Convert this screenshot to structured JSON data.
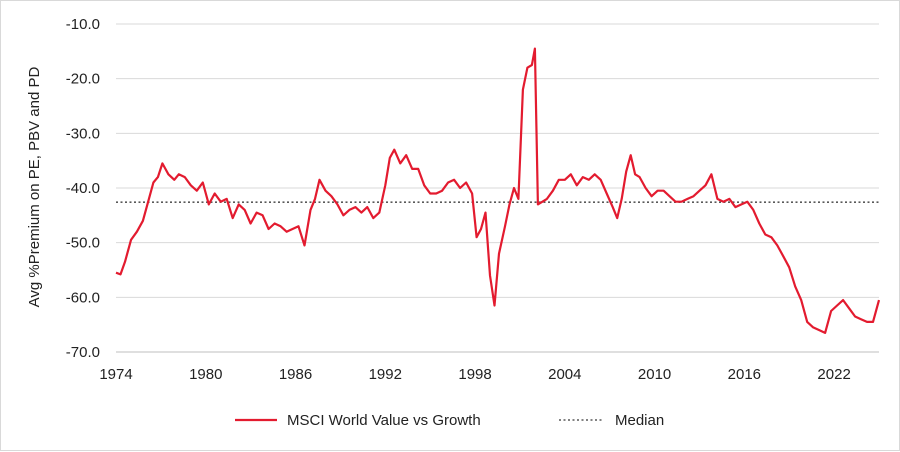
{
  "chart_data": {
    "type": "line",
    "title": "",
    "xlabel": "",
    "ylabel": "Avg %Premium on PE, PBV and PD",
    "xlim": [
      1974,
      2025
    ],
    "ylim": [
      -70,
      -10
    ],
    "x_ticks": [
      "1974",
      "1980",
      "1986",
      "1992",
      "1998",
      "2004",
      "2010",
      "2016",
      "2022"
    ],
    "y_ticks": [
      "-10.0",
      "-20.0",
      "-30.0",
      "-40.0",
      "-50.0",
      "-60.0",
      "-70.0"
    ],
    "grid": "horizontal",
    "legend_position": "bottom",
    "series": [
      {
        "name": "MSCI World Value vs Growth",
        "color": "#e31b2f",
        "style": "solid",
        "x": [
          1974.0,
          1974.3,
          1974.6,
          1975.0,
          1975.4,
          1975.8,
          1976.1,
          1976.5,
          1976.8,
          1977.1,
          1977.5,
          1977.9,
          1978.2,
          1978.6,
          1979.0,
          1979.4,
          1979.8,
          1980.2,
          1980.6,
          1981.0,
          1981.4,
          1981.8,
          1982.2,
          1982.6,
          1983.0,
          1983.4,
          1983.8,
          1984.2,
          1984.6,
          1985.0,
          1985.4,
          1985.8,
          1986.2,
          1986.6,
          1987.0,
          1987.3,
          1987.6,
          1988.0,
          1988.4,
          1988.8,
          1989.2,
          1989.6,
          1990.0,
          1990.4,
          1990.8,
          1991.2,
          1991.6,
          1992.0,
          1992.3,
          1992.6,
          1993.0,
          1993.4,
          1993.8,
          1994.2,
          1994.6,
          1995.0,
          1995.4,
          1995.8,
          1996.2,
          1996.6,
          1997.0,
          1997.4,
          1997.8,
          1998.1,
          1998.4,
          1998.7,
          1999.0,
          1999.3,
          1999.6,
          2000.0,
          2000.3,
          2000.6,
          2000.9,
          2001.2,
          2001.5,
          2001.8,
          2002.0,
          2002.2,
          2002.5,
          2002.8,
          2003.2,
          2003.6,
          2004.0,
          2004.4,
          2004.8,
          2005.2,
          2005.6,
          2006.0,
          2006.4,
          2006.8,
          2007.2,
          2007.5,
          2007.8,
          2008.1,
          2008.4,
          2008.7,
          2009.0,
          2009.4,
          2009.8,
          2010.2,
          2010.6,
          2011.0,
          2011.4,
          2011.8,
          2012.2,
          2012.6,
          2013.0,
          2013.4,
          2013.8,
          2014.2,
          2014.6,
          2015.0,
          2015.4,
          2015.8,
          2016.2,
          2016.6,
          2017.0,
          2017.4,
          2017.8,
          2018.2,
          2018.6,
          2019.0,
          2019.4,
          2019.8,
          2020.2,
          2020.6,
          2021.0,
          2021.4,
          2021.8,
          2022.2,
          2022.6,
          2023.0,
          2023.4,
          2023.8,
          2024.2,
          2024.6,
          2025.0
        ],
        "values": [
          -55.5,
          -55.8,
          -53.5,
          -49.5,
          -48.0,
          -46.0,
          -43.0,
          -39.0,
          -38.0,
          -35.5,
          -37.5,
          -38.5,
          -37.5,
          -38.0,
          -39.5,
          -40.5,
          -39.0,
          -43.0,
          -41.0,
          -42.5,
          -42.0,
          -45.5,
          -43.0,
          -44.0,
          -46.5,
          -44.5,
          -45.0,
          -47.5,
          -46.5,
          -47.0,
          -48.0,
          -47.5,
          -47.0,
          -50.5,
          -44.0,
          -42.0,
          -38.5,
          -40.5,
          -41.5,
          -43.0,
          -45.0,
          -44.0,
          -43.5,
          -44.5,
          -43.5,
          -45.5,
          -44.5,
          -39.5,
          -34.5,
          -33.0,
          -35.5,
          -34.0,
          -36.5,
          -36.5,
          -39.5,
          -41.0,
          -41.0,
          -40.5,
          -39.0,
          -38.5,
          -40.0,
          -39.0,
          -41.0,
          -49.0,
          -47.5,
          -44.5,
          -56.0,
          -61.5,
          -52.0,
          -47.0,
          -43.0,
          -40.0,
          -42.0,
          -22.0,
          -18.0,
          -17.5,
          -14.5,
          -43.0,
          -42.5,
          -42.0,
          -40.5,
          -38.5,
          -38.5,
          -37.5,
          -39.5,
          -38.0,
          -38.5,
          -37.5,
          -38.5,
          -41.0,
          -43.5,
          -45.5,
          -42.0,
          -37.0,
          -34.0,
          -37.5,
          -38.0,
          -40.0,
          -41.5,
          -40.5,
          -40.5,
          -41.5,
          -42.5,
          -42.5,
          -42.0,
          -41.5,
          -40.5,
          -39.5,
          -37.5,
          -42.0,
          -42.5,
          -42.0,
          -43.5,
          -43.0,
          -42.5,
          -44.0,
          -46.5,
          -48.5,
          -49.0,
          -50.5,
          -52.5,
          -54.5,
          -58.0,
          -60.5,
          -64.5,
          -65.5,
          -66.0,
          -66.5,
          -62.5,
          -61.5,
          -60.5,
          -62.0,
          -63.5,
          -64.0,
          -64.5,
          -64.5,
          -60.5
        ]
      },
      {
        "name": "Median",
        "color": "#595959",
        "style": "dotted",
        "value": -42.6
      }
    ]
  }
}
